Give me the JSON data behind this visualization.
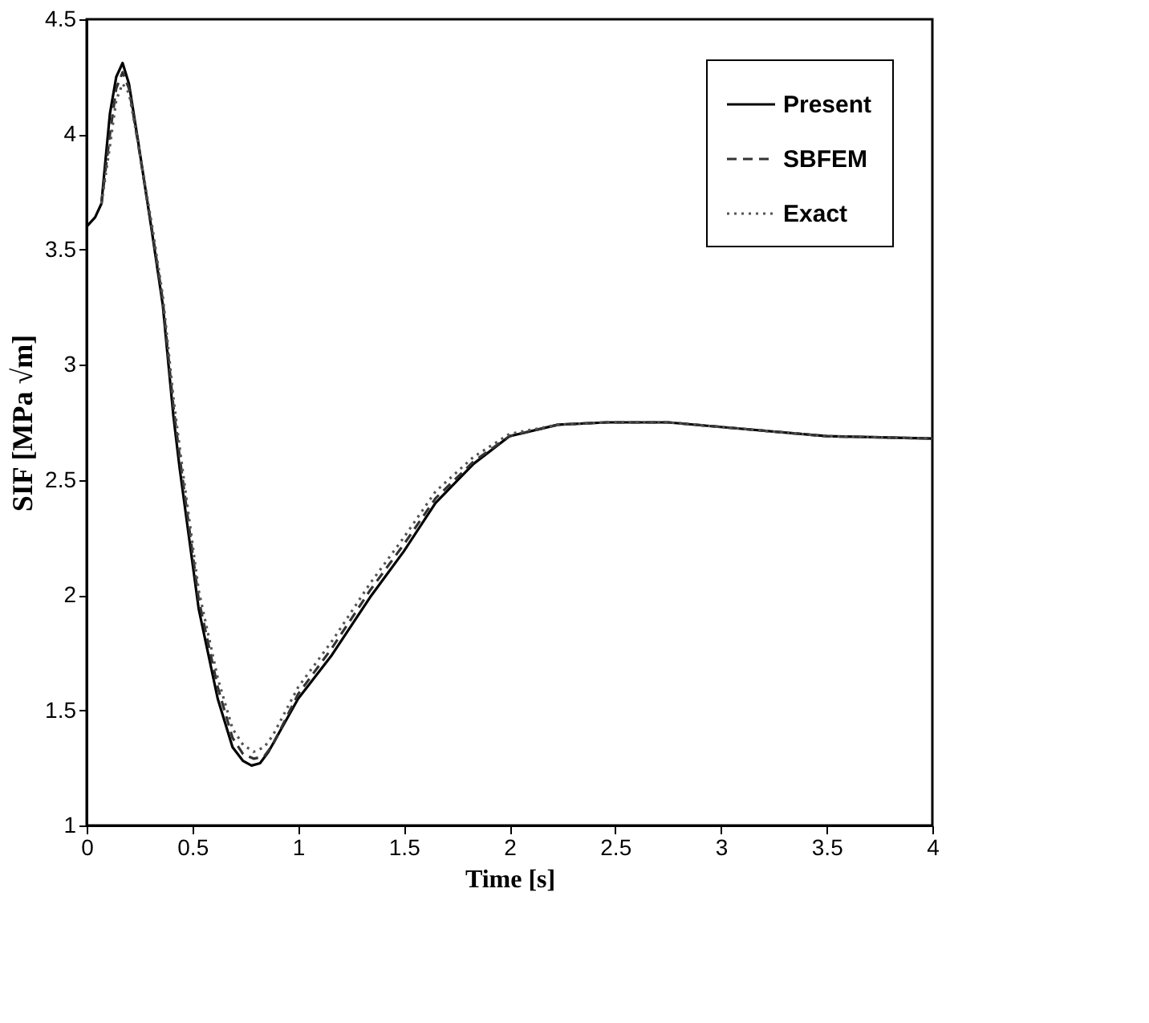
{
  "chart_data": {
    "type": "line",
    "xlabel": "Time [s]",
    "ylabel": "SIF [MPa √m]",
    "xlim": [
      0,
      4
    ],
    "ylim": [
      1,
      4.5
    ],
    "xticks": [
      0,
      0.5,
      1,
      1.5,
      2,
      2.5,
      3,
      3.5,
      4
    ],
    "yticks": [
      1,
      1.5,
      2,
      2.5,
      3,
      3.5,
      4,
      4.5
    ],
    "grid": false,
    "legend": "top right",
    "marker": "none",
    "series": [
      {
        "name": "Present",
        "color": "#000000",
        "line_style": "solid",
        "x": [
          0,
          0.04,
          0.07,
          0.08,
          0.11,
          0.14,
          0.17,
          0.2,
          0.24,
          0.31,
          0.36,
          0.41,
          0.44,
          0.53,
          0.62,
          0.69,
          0.74,
          0.78,
          0.82,
          0.86,
          1.0,
          1.16,
          1.34,
          1.5,
          1.65,
          1.83,
          2.0,
          2.23,
          2.46,
          2.75,
          3.0,
          3.5,
          4.0
        ],
        "values": [
          3.6,
          3.64,
          3.7,
          3.8,
          4.09,
          4.25,
          4.31,
          4.22,
          3.99,
          3.57,
          3.26,
          2.78,
          2.55,
          1.94,
          1.55,
          1.34,
          1.28,
          1.26,
          1.27,
          1.32,
          1.55,
          1.74,
          1.99,
          2.19,
          2.4,
          2.57,
          2.69,
          2.74,
          2.75,
          2.75,
          2.73,
          2.69,
          2.68
        ]
      },
      {
        "name": "SBFEM",
        "color": "#333333",
        "line_style": "dashed",
        "x": [
          0.07,
          0.11,
          0.14,
          0.17,
          0.2,
          0.24,
          0.31,
          0.36,
          0.41,
          0.44,
          0.53,
          0.62,
          0.69,
          0.74,
          0.79,
          0.84,
          0.88,
          1.0,
          1.16,
          1.34,
          1.5,
          1.65,
          1.83,
          2.0,
          2.23,
          2.46,
          2.75,
          3.0,
          3.5,
          4.0
        ],
        "values": [
          3.7,
          4.0,
          4.2,
          4.27,
          4.2,
          3.98,
          3.58,
          3.28,
          2.82,
          2.6,
          1.98,
          1.6,
          1.38,
          1.31,
          1.29,
          1.3,
          1.35,
          1.57,
          1.77,
          2.02,
          2.22,
          2.42,
          2.58,
          2.69,
          2.74,
          2.75,
          2.75,
          2.73,
          2.69,
          2.68
        ]
      },
      {
        "name": "Exact",
        "color": "#555555",
        "line_style": "dotted",
        "x": [
          0.07,
          0.11,
          0.14,
          0.17,
          0.2,
          0.24,
          0.31,
          0.36,
          0.41,
          0.44,
          0.53,
          0.62,
          0.69,
          0.74,
          0.79,
          0.84,
          0.88,
          1.0,
          1.16,
          1.34,
          1.5,
          1.65,
          1.83,
          2.0,
          2.23,
          2.46,
          2.75,
          3.0,
          3.5,
          4.0
        ],
        "values": [
          3.7,
          3.95,
          4.15,
          4.22,
          4.18,
          3.98,
          3.6,
          3.3,
          2.86,
          2.64,
          2.02,
          1.64,
          1.42,
          1.35,
          1.32,
          1.34,
          1.39,
          1.6,
          1.8,
          2.05,
          2.25,
          2.45,
          2.6,
          2.7,
          2.74,
          2.75,
          2.75,
          2.73,
          2.69,
          2.68
        ]
      }
    ]
  }
}
